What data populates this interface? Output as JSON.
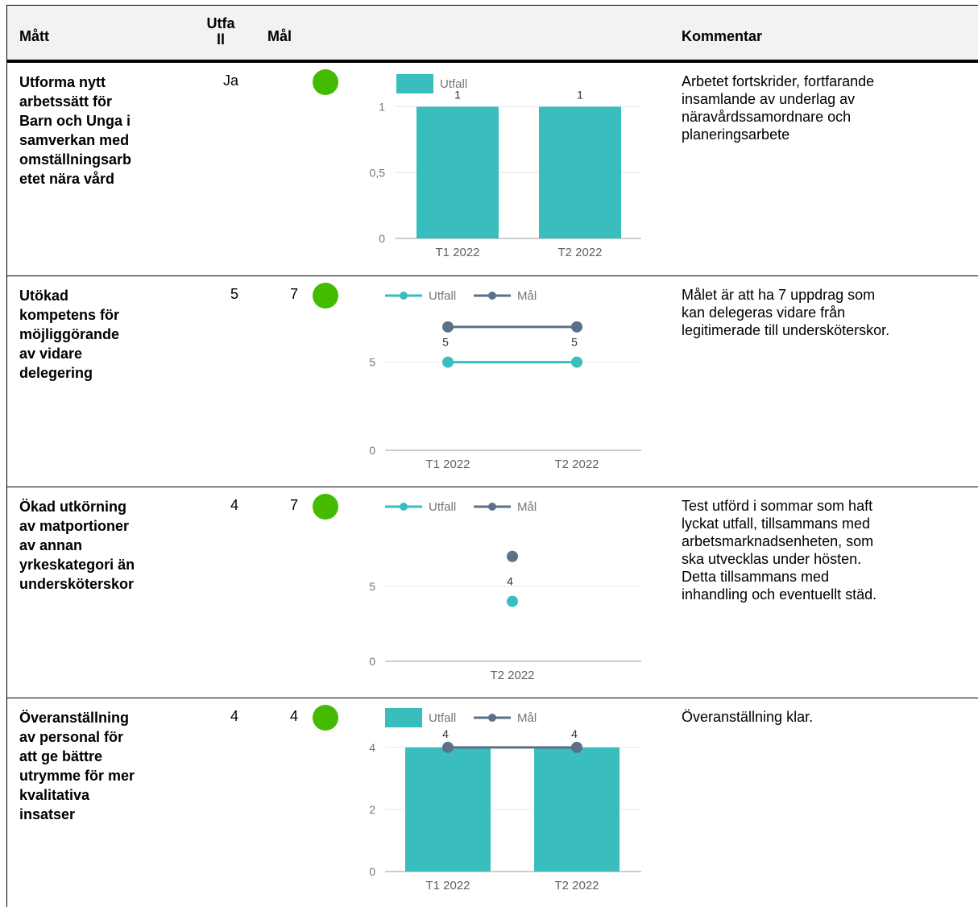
{
  "header": {
    "matt": "Mått",
    "utfall_line1": "Utfa",
    "utfall_line2": "ll",
    "mal": "Mål",
    "kommentar": "Kommentar"
  },
  "colors": {
    "teal": "#3abdbd",
    "slate": "#5a7189",
    "green": "#44bb00",
    "header_bg": "#f2f2f2"
  },
  "rows": [
    {
      "matt": [
        "Utforma nytt",
        "arbetssätt för",
        "Barn och Unga i",
        "samverkan med",
        "omställningsarb",
        "etet nära vård"
      ],
      "utfall": "Ja",
      "mal": "",
      "status": "green-circle-icon",
      "kommentar": [
        "Arbetet fortskrider, fortfarande",
        "insamlande av underlag av",
        "näravårdssamordnare och",
        "planeringsarbete"
      ]
    },
    {
      "matt": [
        "Utökad",
        "kompetens för",
        "möjliggörande",
        "av vidare",
        "delegering"
      ],
      "utfall": "5",
      "mal": "7",
      "status": "green-circle-icon",
      "kommentar": [
        "Målet är att ha 7 uppdrag som",
        "kan delegeras vidare från",
        "legitimerade till undersköterskor."
      ]
    },
    {
      "matt": [
        "Ökad utkörning",
        "av matportioner",
        "av annan",
        "yrkeskategori än",
        "undersköterskor"
      ],
      "utfall": "4",
      "mal": "7",
      "status": "green-circle-icon",
      "kommentar": [
        "Test utförd i sommar som haft",
        "lyckat utfall, tillsammans med",
        "arbetsmarknadsenheten, som",
        "ska utvecklas under hösten.",
        "Detta tillsammans med",
        "inhandling och eventuellt städ."
      ]
    },
    {
      "matt": [
        "Överanställning",
        "av personal för",
        "att ge bättre",
        "utrymme för mer",
        "kvalitativa",
        "insatser"
      ],
      "utfall": "4",
      "mal": "4",
      "status": "green-circle-icon",
      "kommentar": [
        "Överanställning klar."
      ]
    }
  ],
  "chart_data": [
    {
      "type": "bar",
      "categories": [
        "T1 2022",
        "T2 2022"
      ],
      "series": [
        {
          "name": "Utfall",
          "values": [
            1,
            1
          ]
        }
      ],
      "ylim": [
        0,
        1.15
      ],
      "yticks": [
        "0",
        "0,5",
        "1"
      ],
      "legend": "top-left",
      "grid": true
    },
    {
      "type": "line",
      "categories": [
        "T1 2022",
        "T2 2022"
      ],
      "series": [
        {
          "name": "Utfall",
          "values": [
            5,
            5
          ]
        },
        {
          "name": "Mål",
          "values": [
            7,
            7
          ]
        }
      ],
      "data_labels": [
        "5",
        "5"
      ],
      "ylim": [
        0,
        8.5
      ],
      "yticks": [
        "0",
        "5"
      ],
      "legend": "top-left",
      "grid": true
    },
    {
      "type": "scatter",
      "categories": [
        "T2 2022"
      ],
      "series": [
        {
          "name": "Utfall",
          "values": [
            4
          ]
        },
        {
          "name": "Mål",
          "values": [
            7
          ]
        }
      ],
      "data_labels": [
        "4"
      ],
      "ylim": [
        0,
        10
      ],
      "yticks": [
        "0",
        "5"
      ],
      "legend": "top-left",
      "grid": true
    },
    {
      "type": "bar",
      "categories": [
        "T1 2022",
        "T2 2022"
      ],
      "series": [
        {
          "name": "Utfall",
          "values": [
            4,
            4
          ]
        },
        {
          "name": "Mål",
          "values": [
            4,
            4
          ]
        }
      ],
      "data_labels": [
        "4",
        "4"
      ],
      "ylim": [
        0,
        4.8
      ],
      "yticks": [
        "0",
        "2",
        "4"
      ],
      "legend": "top-left",
      "grid": true
    }
  ]
}
